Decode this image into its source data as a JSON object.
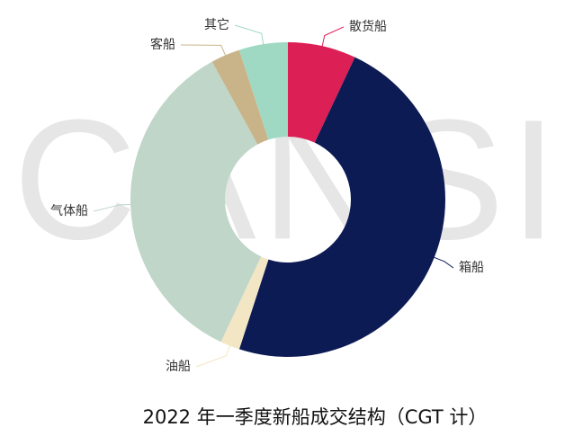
{
  "chart_data": {
    "type": "donut",
    "title": "2022 年一季度新船成交结构（CGT 计）",
    "watermark": "CANSI",
    "categories": [
      "散货船",
      "箱船",
      "油船",
      "气体船",
      "客船",
      "其它"
    ],
    "values": [
      7,
      48,
      2,
      35,
      3,
      5
    ],
    "colors": [
      "#dc1f55",
      "#0d1b55",
      "#f3e6c4",
      "#bfd6c8",
      "#c9b48a",
      "#9fd9c4"
    ]
  }
}
